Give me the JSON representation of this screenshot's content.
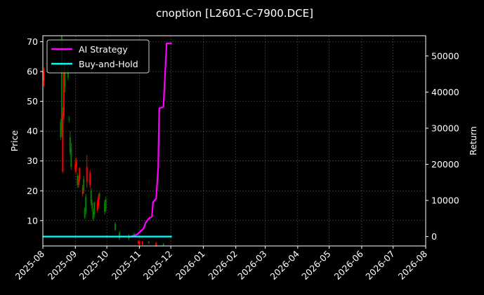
{
  "chart_data": {
    "type": "candlestick+line",
    "title": "cnoption [L2601-C-7900.DCE]",
    "ylabel_left": "Price",
    "ylabel_right": "Return",
    "x_range": [
      "2025-08-01",
      "2026-08-01"
    ],
    "x_ticks": [
      "2025-08",
      "2025-09",
      "2025-10",
      "2025-11",
      "2025-12",
      "2026-01",
      "2026-02",
      "2026-03",
      "2026-04",
      "2026-05",
      "2026-06",
      "2026-07",
      "2026-08"
    ],
    "ylim_left": [
      1.5,
      72
    ],
    "y_ticks_left": [
      10,
      20,
      30,
      40,
      50,
      60,
      70
    ],
    "ylim_right": [
      -2600,
      55600
    ],
    "y_ticks_right": [
      0,
      10000,
      20000,
      30000,
      40000,
      50000
    ],
    "grid": true,
    "legend_position": "top-left",
    "colors": {
      "up": "#008000",
      "down": "#ff0000",
      "strategy": "#ff00ff",
      "buyhold": "#00ffff",
      "background": "#000000",
      "text": "#ffffff"
    },
    "candles": [
      {
        "date": "2025-08-02",
        "open": 60,
        "close": 57,
        "high": 61,
        "low": 55
      },
      {
        "date": "2025-08-18",
        "open": 38,
        "close": 43,
        "high": 44,
        "low": 37
      },
      {
        "date": "2025-08-19",
        "open": 40,
        "close": 72,
        "high": 72,
        "low": 38
      },
      {
        "date": "2025-08-20",
        "open": 46,
        "close": 26.5,
        "high": 48,
        "low": 26
      },
      {
        "date": "2025-08-21",
        "open": 60,
        "close": 45,
        "high": 64,
        "low": 44
      },
      {
        "date": "2025-08-22",
        "open": 55,
        "close": 62,
        "high": 64,
        "low": 53
      },
      {
        "date": "2025-08-25",
        "open": 58,
        "close": 60,
        "high": 62,
        "low": 57
      },
      {
        "date": "2025-08-26",
        "open": 44,
        "close": 44,
        "high": 45,
        "low": 43
      },
      {
        "date": "2025-08-27",
        "open": 33,
        "close": 38,
        "high": 40,
        "low": 32
      },
      {
        "date": "2025-08-28",
        "open": 28,
        "close": 34,
        "high": 36,
        "low": 27
      },
      {
        "date": "2025-09-01",
        "open": 29,
        "close": 27,
        "high": 31,
        "low": 26
      },
      {
        "date": "2025-09-02",
        "open": 30,
        "close": 28,
        "high": 31,
        "low": 26
      },
      {
        "date": "2025-09-03",
        "open": 22,
        "close": 25,
        "high": 26,
        "low": 21
      },
      {
        "date": "2025-09-04",
        "open": 24,
        "close": 22,
        "high": 25,
        "low": 21
      },
      {
        "date": "2025-09-05",
        "open": 27.5,
        "close": 24,
        "high": 28,
        "low": 23
      },
      {
        "date": "2025-09-08",
        "open": 21,
        "close": 19,
        "high": 22,
        "low": 18
      },
      {
        "date": "2025-09-09",
        "open": 20,
        "close": 24,
        "high": 25,
        "low": 19
      },
      {
        "date": "2025-09-10",
        "open": 11,
        "close": 14,
        "high": 14.5,
        "low": 10.5
      },
      {
        "date": "2025-09-11",
        "open": 13,
        "close": 18,
        "high": 19,
        "low": 12
      },
      {
        "date": "2025-09-12",
        "open": 28,
        "close": 23,
        "high": 32,
        "low": 21
      },
      {
        "date": "2025-09-15",
        "open": 26,
        "close": 22,
        "high": 27,
        "low": 21
      },
      {
        "date": "2025-09-16",
        "open": 16,
        "close": 20,
        "high": 21,
        "low": 15
      },
      {
        "date": "2025-09-17",
        "open": 14,
        "close": 16,
        "high": 17,
        "low": 13
      },
      {
        "date": "2025-09-18",
        "open": 10.5,
        "close": 13,
        "high": 14,
        "low": 10
      },
      {
        "date": "2025-09-19",
        "open": 12,
        "close": 16,
        "high": 16.5,
        "low": 11
      },
      {
        "date": "2025-09-22",
        "open": 16,
        "close": 13.5,
        "high": 17,
        "low": 13
      },
      {
        "date": "2025-09-23",
        "open": 18,
        "close": 15,
        "high": 19,
        "low": 14
      },
      {
        "date": "2025-09-24",
        "open": 18,
        "close": 19,
        "high": 19.5,
        "low": 17
      },
      {
        "date": "2025-09-29",
        "open": 13,
        "close": 16,
        "high": 17,
        "low": 12
      },
      {
        "date": "2025-09-30",
        "open": 14,
        "close": 17,
        "high": 18,
        "low": 13
      },
      {
        "date": "2025-10-09",
        "open": 7,
        "close": 9,
        "high": 9.5,
        "low": 6.5
      },
      {
        "date": "2025-10-13",
        "open": 4,
        "close": 6,
        "high": 6.5,
        "low": 3.5
      },
      {
        "date": "2025-10-22",
        "open": 4,
        "close": 5,
        "high": 5.5,
        "low": 3.5
      },
      {
        "date": "2025-10-27",
        "open": 5,
        "close": 5.5,
        "high": 6,
        "low": 4.5
      },
      {
        "date": "2025-10-31",
        "open": 3,
        "close": 2.5,
        "high": 3.5,
        "low": 2
      },
      {
        "date": "2025-11-01",
        "open": 3,
        "close": 2,
        "high": 3.2,
        "low": 1.8
      },
      {
        "date": "2025-11-04",
        "open": 3,
        "close": 2,
        "high": 3.2,
        "low": 1.8
      },
      {
        "date": "2025-11-10",
        "open": 2.5,
        "close": 3,
        "high": 3.2,
        "low": 2.2
      },
      {
        "date": "2025-11-17",
        "open": 2.5,
        "close": 1.5,
        "high": 2.8,
        "low": 1.2
      },
      {
        "date": "2025-11-24",
        "open": 1.6,
        "close": 2.2,
        "high": 2.5,
        "low": 1.5
      }
    ],
    "series": [
      {
        "name": "AI Strategy",
        "points": [
          {
            "date": "2025-10-24",
            "value": 0
          },
          {
            "date": "2025-10-30",
            "value": 600
          },
          {
            "date": "2025-11-01",
            "value": 1200
          },
          {
            "date": "2025-11-05",
            "value": 2200
          },
          {
            "date": "2025-11-07",
            "value": 3800
          },
          {
            "date": "2025-11-10",
            "value": 5000
          },
          {
            "date": "2025-11-13",
            "value": 5500
          },
          {
            "date": "2025-11-14",
            "value": 9500
          },
          {
            "date": "2025-11-17",
            "value": 10500
          },
          {
            "date": "2025-11-19",
            "value": 19000
          },
          {
            "date": "2025-11-20",
            "value": 35500
          },
          {
            "date": "2025-11-23",
            "value": 35800
          },
          {
            "date": "2025-11-24",
            "value": 36000
          },
          {
            "date": "2025-11-27",
            "value": 53500
          },
          {
            "date": "2025-12-02",
            "value": 53500
          }
        ]
      },
      {
        "name": "Buy-and-Hold",
        "points": [
          {
            "date": "2025-08-01",
            "value": 0
          },
          {
            "date": "2025-12-02",
            "value": 0
          }
        ]
      }
    ]
  }
}
